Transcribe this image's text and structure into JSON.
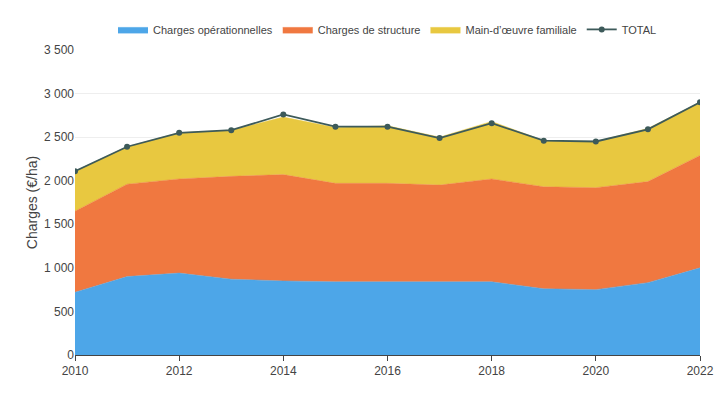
{
  "chart_data": {
    "type": "area",
    "stacked": true,
    "x": [
      2010,
      2011,
      2012,
      2013,
      2014,
      2015,
      2016,
      2017,
      2018,
      2019,
      2020,
      2021,
      2022
    ],
    "series": [
      {
        "name": "Charges opérationnelles",
        "color": "#4da6e8",
        "values": [
          720,
          900,
          940,
          870,
          850,
          840,
          840,
          840,
          840,
          760,
          750,
          830,
          1000
        ]
      },
      {
        "name": "Charges de structure",
        "color": "#f07840",
        "values": [
          930,
          1060,
          1080,
          1180,
          1220,
          1130,
          1130,
          1110,
          1180,
          1170,
          1170,
          1160,
          1290
        ]
      },
      {
        "name": "Main-d’œuvre familiale",
        "color": "#e8c840",
        "values": [
          460,
          430,
          530,
          530,
          660,
          640,
          660,
          550,
          660,
          530,
          530,
          610,
          610
        ]
      },
      {
        "name": "TOTAL",
        "type": "line",
        "marker": "circle",
        "color": "#3d5a5a",
        "values": [
          2110,
          2390,
          2550,
          2580,
          2760,
          2620,
          2620,
          2490,
          2660,
          2460,
          2450,
          2590,
          2900
        ]
      }
    ],
    "ylabel": "Charges (€/ha)",
    "xlim": [
      2010,
      2022
    ],
    "xticks": [
      2010,
      2012,
      2014,
      2016,
      2018,
      2020,
      2022
    ],
    "ylim": [
      0,
      3500
    ],
    "yticks": [
      0,
      500,
      {
        "value": 1000,
        "label": "1 000"
      },
      {
        "value": 1500,
        "label": "1 500"
      },
      {
        "value": 2000,
        "label": "2 000"
      },
      {
        "value": 2500,
        "label": "2 500"
      },
      {
        "value": 3000,
        "label": "3 000"
      },
      {
        "value": 3500,
        "label": "3 500"
      }
    ],
    "grid": true,
    "legend": "top"
  }
}
